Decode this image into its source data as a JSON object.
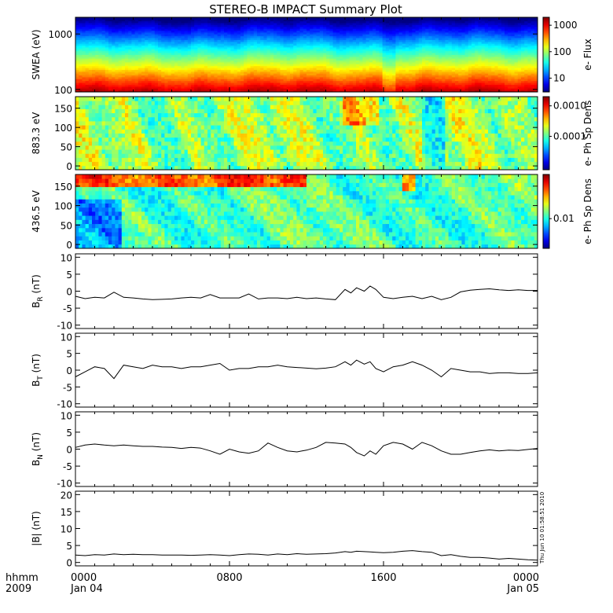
{
  "title": "STEREO-B IMPACT Summary Plot",
  "footer": {
    "x_label_top": "hhmm",
    "x_label_bottom": "2009",
    "stamp": "Thu Jun 10 01:58:51 2010"
  },
  "colors": {
    "line": "#000000",
    "frame": "#000000",
    "background": "#ffffff"
  },
  "chart_data": [
    {
      "type": "heatmap",
      "panel": "swea",
      "ylabel": "SWEA (eV)",
      "yscale": "log",
      "ylim": [
        90,
        2000
      ],
      "yticks": [
        {
          "v": 100,
          "label": "100"
        },
        {
          "v": 1000,
          "label": "1000"
        }
      ],
      "colorbar": {
        "label": "e- Flux",
        "scale": "log",
        "range": [
          3,
          2000
        ],
        "ticks": [
          {
            "v": 10,
            "label": "10"
          },
          {
            "v": 100,
            "label": "100"
          },
          {
            "v": 1000,
            "label": "1000"
          }
        ]
      },
      "x_range_hours": [
        0,
        24
      ]
    },
    {
      "type": "heatmap",
      "panel": "pad_883",
      "ylabel": "883.3 eV",
      "ylim": [
        -10,
        180
      ],
      "yticks": [
        {
          "v": 0,
          "label": "0"
        },
        {
          "v": 50,
          "label": "50"
        },
        {
          "v": 100,
          "label": "100"
        },
        {
          "v": 150,
          "label": "150"
        }
      ],
      "colorbar": {
        "label": "e- Ph Sp Dens",
        "scale": "log",
        "range": [
          8e-06,
          0.002
        ],
        "ticks": [
          {
            "v": 0.0001,
            "label": "0.0001"
          },
          {
            "v": 0.001,
            "label": "0.0010"
          }
        ]
      },
      "x_range_hours": [
        0,
        24
      ]
    },
    {
      "type": "heatmap",
      "panel": "pad_436",
      "ylabel": "436.5 eV",
      "ylim": [
        -10,
        180
      ],
      "yticks": [
        {
          "v": 0,
          "label": "0"
        },
        {
          "v": 50,
          "label": "50"
        },
        {
          "v": 100,
          "label": "100"
        },
        {
          "v": 150,
          "label": "150"
        }
      ],
      "colorbar": {
        "label": "e- Ph Sp Dens",
        "scale": "log",
        "range": [
          0.003,
          0.06
        ],
        "ticks": [
          {
            "v": 0.01,
            "label": "0.01"
          }
        ]
      },
      "x_range_hours": [
        0,
        24
      ]
    },
    {
      "type": "line",
      "panel": "BR",
      "ylabel_main": "B",
      "ylabel_sub": "R",
      "ylabel_unit": " (nT)",
      "ylim": [
        -11,
        11
      ],
      "yticks": [
        -10,
        -5,
        0,
        5,
        10
      ],
      "x": [
        0,
        0.5,
        1,
        1.5,
        2,
        2.5,
        3,
        3.5,
        4,
        4.5,
        5,
        5.5,
        6,
        6.5,
        7,
        7.5,
        8,
        8.5,
        9,
        9.5,
        10,
        10.5,
        11,
        11.5,
        12,
        12.5,
        13,
        13.5,
        14,
        14.3,
        14.6,
        15,
        15.3,
        15.6,
        16,
        16.5,
        17,
        17.5,
        18,
        18.5,
        19,
        19.5,
        20,
        20.5,
        21,
        21.5,
        22,
        22.5,
        23,
        23.5,
        24
      ],
      "y": [
        -1.5,
        -2.2,
        -1.8,
        -2,
        -0.3,
        -1.8,
        -2,
        -2.3,
        -2.5,
        -2.4,
        -2.3,
        -2,
        -1.8,
        -2,
        -1,
        -2,
        -2,
        -2,
        -0.8,
        -2.3,
        -2,
        -2,
        -2.2,
        -1.8,
        -2.2,
        -2,
        -2.3,
        -2.5,
        0.5,
        -0.5,
        1,
        0,
        1.5,
        0.5,
        -1.8,
        -2.2,
        -1.8,
        -1.5,
        -2.2,
        -1.5,
        -2.5,
        -1.8,
        -0.2,
        0.3,
        0.5,
        0.7,
        0.4,
        0.2,
        0.4,
        0.2,
        0.2
      ]
    },
    {
      "type": "line",
      "panel": "BT",
      "ylabel_main": "B",
      "ylabel_sub": "T",
      "ylabel_unit": " (nT)",
      "ylim": [
        -11,
        11
      ],
      "yticks": [
        -10,
        -5,
        0,
        5,
        10
      ],
      "x": [
        0,
        0.5,
        1,
        1.5,
        2,
        2.5,
        3,
        3.5,
        4,
        4.5,
        5,
        5.5,
        6,
        6.5,
        7,
        7.5,
        8,
        8.5,
        9,
        9.5,
        10,
        10.5,
        11,
        11.5,
        12,
        12.5,
        13,
        13.5,
        14,
        14.3,
        14.6,
        15,
        15.3,
        15.6,
        16,
        16.5,
        17,
        17.5,
        18,
        18.5,
        19,
        19.5,
        20,
        20.5,
        21,
        21.5,
        22,
        22.5,
        23,
        23.5,
        24
      ],
      "y": [
        -2,
        -0.5,
        1,
        0.5,
        -2.5,
        1.5,
        1,
        0.5,
        1.5,
        1,
        1,
        0.5,
        1,
        1,
        1.5,
        2,
        0,
        0.5,
        0.5,
        1,
        1,
        1.5,
        1,
        0.8,
        0.6,
        0.4,
        0.6,
        1,
        2.5,
        1.5,
        3,
        1.8,
        2.5,
        0.5,
        -0.5,
        1,
        1.5,
        2.5,
        1.5,
        0,
        -2,
        0.5,
        0,
        -0.5,
        -0.5,
        -1,
        -0.8,
        -0.8,
        -1,
        -1,
        -0.8
      ]
    },
    {
      "type": "line",
      "panel": "BN",
      "ylabel_main": "B",
      "ylabel_sub": "N",
      "ylabel_unit": " (nT)",
      "ylim": [
        -11,
        11
      ],
      "yticks": [
        -10,
        -5,
        0,
        5,
        10
      ],
      "x": [
        0,
        0.5,
        1,
        1.5,
        2,
        2.5,
        3,
        3.5,
        4,
        4.5,
        5,
        5.5,
        6,
        6.5,
        7,
        7.5,
        8,
        8.5,
        9,
        9.5,
        10,
        10.5,
        11,
        11.5,
        12,
        12.5,
        13,
        13.5,
        14,
        14.3,
        14.6,
        15,
        15.3,
        15.6,
        16,
        16.5,
        17,
        17.5,
        18,
        18.5,
        19,
        19.5,
        20,
        20.5,
        21,
        21.5,
        22,
        22.5,
        23,
        23.5,
        24
      ],
      "y": [
        0.5,
        1.2,
        1.5,
        1.2,
        1,
        1.2,
        1,
        0.8,
        0.8,
        0.6,
        0.5,
        0.2,
        0.5,
        0.3,
        -0.5,
        -1.5,
        0,
        -0.8,
        -1.2,
        -0.5,
        1.8,
        0.5,
        -0.5,
        -0.8,
        -0.3,
        0.5,
        2,
        1.8,
        1.5,
        0.5,
        -1,
        -2,
        -0.5,
        -1.5,
        1,
        2,
        1.5,
        0,
        2,
        1,
        -0.5,
        -1.5,
        -1.5,
        -1,
        -0.5,
        -0.2,
        -0.5,
        -0.3,
        -0.4,
        -0.1,
        0.2
      ]
    },
    {
      "type": "line",
      "panel": "Bmag",
      "ylabel_main": "|B| (nT)",
      "ylim": [
        -1,
        21
      ],
      "yticks": [
        0,
        5,
        10,
        15,
        20
      ],
      "x": [
        0,
        0.5,
        1,
        1.5,
        2,
        2.5,
        3,
        3.5,
        4,
        4.5,
        5,
        5.5,
        6,
        6.5,
        7,
        7.5,
        8,
        8.5,
        9,
        9.5,
        10,
        10.5,
        11,
        11.5,
        12,
        12.5,
        13,
        13.5,
        14,
        14.3,
        14.6,
        15,
        15.3,
        15.6,
        16,
        16.5,
        17,
        17.5,
        18,
        18.5,
        19,
        19.5,
        20,
        20.5,
        21,
        21.5,
        22,
        22.5,
        23,
        23.5,
        24
      ],
      "y": [
        2.2,
        2,
        2.3,
        2.2,
        2.5,
        2.3,
        2.4,
        2.3,
        2.3,
        2.2,
        2.2,
        2.2,
        2.1,
        2.2,
        2.3,
        2.2,
        2,
        2.3,
        2.5,
        2.4,
        2.2,
        2.5,
        2.3,
        2.6,
        2.4,
        2.5,
        2.6,
        2.8,
        3.2,
        3,
        3.3,
        3.2,
        3.1,
        3,
        2.9,
        3,
        3.3,
        3.5,
        3.2,
        3,
        2,
        2.3,
        1.8,
        1.5,
        1.5,
        1.3,
        1,
        1.2,
        1,
        0.8,
        0.7
      ]
    }
  ],
  "x_axis": {
    "ticks": [
      {
        "v": 0,
        "top": "0000",
        "bottom": "Jan 04"
      },
      {
        "v": 8,
        "top": "0800",
        "bottom": ""
      },
      {
        "v": 16,
        "top": "1600",
        "bottom": ""
      },
      {
        "v": 24,
        "top": "0000",
        "bottom": "Jan 05"
      }
    ],
    "range": [
      0,
      24
    ]
  }
}
